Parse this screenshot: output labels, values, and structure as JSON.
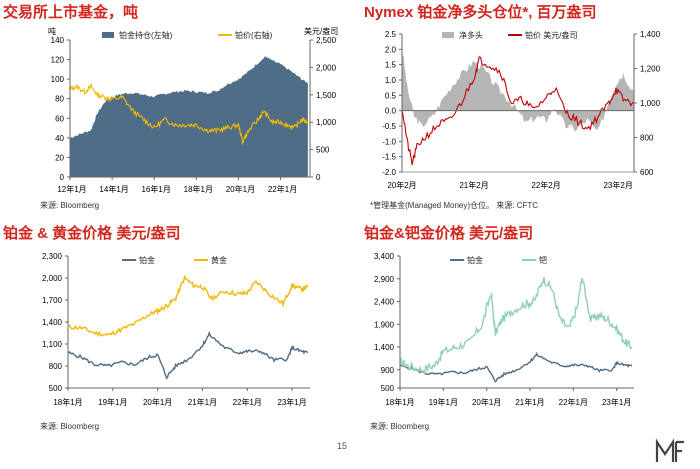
{
  "page": {
    "number": "15",
    "logo_text": "MF"
  },
  "charts": [
    {
      "title": "交易所上市基金，吨",
      "source": "来源: Bloomberg",
      "type": "area+line",
      "left_unit": "吨",
      "right_unit": "美元/盎司",
      "legend": [
        {
          "name": "铂金持仓(左轴)",
          "color": "#4f6d86",
          "kind": "area"
        },
        {
          "name": "铂价(右轴)",
          "color": "#f2b705",
          "kind": "line"
        }
      ],
      "x_labels": [
        "12年1月",
        "14年1月",
        "16年1月",
        "18年1月",
        "20年1月",
        "22年1月"
      ],
      "x_range": [
        2012,
        2023.4
      ],
      "x_tick_years": [
        2012,
        2014,
        2016,
        2018,
        2020,
        2022
      ],
      "y_left_range": [
        0,
        140
      ],
      "y_left_ticks": [
        0,
        20,
        40,
        60,
        80,
        100,
        120,
        140
      ],
      "y_right_range": [
        0,
        2500
      ],
      "y_right_ticks": [
        0,
        500,
        1000,
        1500,
        2000,
        2500
      ],
      "y_right_tick_labels": [
        "0",
        "500",
        "1,000",
        "1,500",
        "2,000",
        "2,500"
      ],
      "series_area": {
        "name": "铂金持仓",
        "x": [
          2012,
          2012.5,
          2013,
          2013.3,
          2013.7,
          2014,
          2014.5,
          2015,
          2015.5,
          2016,
          2016.5,
          2017,
          2017.5,
          2018,
          2018.5,
          2019,
          2019.5,
          2020,
          2020.5,
          2021,
          2021.3,
          2021.6,
          2022,
          2022.5,
          2023,
          2023.3
        ],
        "y": [
          40,
          44,
          48,
          65,
          78,
          82,
          85,
          86,
          84,
          82,
          85,
          87,
          88,
          87,
          86,
          88,
          95,
          100,
          108,
          118,
          123,
          119,
          115,
          108,
          100,
          96
        ]
      },
      "series_line": {
        "name": "铂价",
        "x": [
          2012,
          2012.3,
          2012.7,
          2013,
          2013.3,
          2013.7,
          2014,
          2014.5,
          2015,
          2015.5,
          2016,
          2016.5,
          2017,
          2017.5,
          2018,
          2018.5,
          2019,
          2019.5,
          2020,
          2020.2,
          2020.5,
          2021,
          2021.2,
          2021.6,
          2022,
          2022.3,
          2022.7,
          2023,
          2023.3
        ],
        "y": [
          1600,
          1650,
          1550,
          1650,
          1500,
          1450,
          1420,
          1450,
          1200,
          1050,
          900,
          1050,
          950,
          950,
          950,
          850,
          850,
          900,
          950,
          650,
          850,
          1080,
          1200,
          1000,
          1000,
          950,
          900,
          1050,
          1000
        ]
      }
    },
    {
      "title": "Nymex 铂金净多头仓位*, 百万盎司",
      "source": "*管理基金(Managed Money)仓位。  来源: CFTC",
      "type": "area+line",
      "legend": [
        {
          "name": "净多头",
          "color": "#b5b5b5",
          "kind": "area"
        },
        {
          "name": "铂价 美元/盎司",
          "color": "#c00000",
          "kind": "line"
        }
      ],
      "x_labels": [
        "20年2月",
        "21年2月",
        "22年2月",
        "23年2月"
      ],
      "x_range": [
        2020.08,
        2023.3
      ],
      "x_tick_years": [
        2020.08,
        2021.08,
        2022.08,
        2023.08
      ],
      "y_left_range": [
        -2.0,
        2.5
      ],
      "y_left_ticks": [
        -2.0,
        -1.5,
        -1.0,
        -0.5,
        0.0,
        0.5,
        1.0,
        1.5,
        2.0,
        2.5
      ],
      "y_left_tick_labels": [
        "-2.0",
        "-1.5",
        "-1.0",
        "-0.5",
        "0.0",
        "0.5",
        "1.0",
        "1.5",
        "2.0",
        "2.5"
      ],
      "y_right_range": [
        600,
        1400
      ],
      "y_right_ticks": [
        600,
        800,
        1000,
        1200,
        1400
      ],
      "y_right_tick_labels": [
        "600",
        "800",
        "1,000",
        "1,200",
        "1,400"
      ],
      "series_area": {
        "name": "净多头",
        "x": [
          2020.08,
          2020.15,
          2020.25,
          2020.35,
          2020.5,
          2020.65,
          2020.8,
          2020.95,
          2021.08,
          2021.2,
          2021.35,
          2021.5,
          2021.65,
          2021.8,
          2021.95,
          2022.08,
          2022.2,
          2022.35,
          2022.5,
          2022.65,
          2022.8,
          2022.95,
          2023.05,
          2023.15,
          2023.3
        ],
        "y": [
          2.1,
          0.8,
          -0.2,
          -0.5,
          -0.2,
          0.4,
          0.9,
          1.3,
          1.6,
          1.4,
          0.9,
          0.5,
          0.1,
          -0.4,
          -0.2,
          -0.3,
          0.1,
          -0.5,
          -0.6,
          -0.3,
          -0.7,
          0.3,
          0.9,
          1.2,
          0.6
        ]
      },
      "series_line": {
        "name": "铂价",
        "x": [
          2020.08,
          2020.15,
          2020.22,
          2020.3,
          2020.45,
          2020.6,
          2020.75,
          2020.9,
          2021.08,
          2021.15,
          2021.3,
          2021.45,
          2021.6,
          2021.75,
          2021.9,
          2022.08,
          2022.2,
          2022.35,
          2022.5,
          2022.65,
          2022.8,
          2022.95,
          2023.05,
          2023.15,
          2023.3
        ],
        "y": [
          980,
          780,
          650,
          760,
          820,
          880,
          900,
          1000,
          1150,
          1250,
          1220,
          1180,
          1000,
          1020,
          960,
          1030,
          1090,
          950,
          900,
          850,
          920,
          1000,
          1080,
          1020,
          1000
        ]
      }
    },
    {
      "title": "铂金 & 黄金价格 美元/盎司",
      "source": "来源: Bloomberg",
      "type": "line",
      "legend": [
        {
          "name": "铂金",
          "color": "#4f6d86",
          "kind": "line"
        },
        {
          "name": "黄金",
          "color": "#f2b705",
          "kind": "line"
        }
      ],
      "x_labels": [
        "18年1月",
        "19年1月",
        "20年1月",
        "21年1月",
        "22年1月",
        "23年1月"
      ],
      "x_range": [
        2018,
        2023.4
      ],
      "x_tick_years": [
        2018,
        2019,
        2020,
        2021,
        2022,
        2023
      ],
      "y_range": [
        500,
        2300
      ],
      "y_ticks": [
        500,
        800,
        1100,
        1400,
        1700,
        2000,
        2300
      ],
      "y_tick_labels": [
        "500",
        "800",
        "1,100",
        "1,400",
        "1,700",
        "2,000",
        "2,300"
      ],
      "series": [
        {
          "name": "铂金",
          "x": [
            2018,
            2018.3,
            2018.6,
            2018.9,
            2019.2,
            2019.5,
            2019.8,
            2020,
            2020.2,
            2020.4,
            2020.7,
            2021,
            2021.15,
            2021.5,
            2021.8,
            2022,
            2022.3,
            2022.6,
            2022.9,
            2023,
            2023.2,
            2023.35
          ],
          "y": [
            980,
            920,
            820,
            800,
            850,
            820,
            920,
            950,
            650,
            800,
            900,
            1080,
            1230,
            1050,
            980,
            1000,
            1000,
            880,
            900,
            1050,
            1000,
            980
          ]
        },
        {
          "name": "黄金",
          "x": [
            2018,
            2018.3,
            2018.6,
            2018.9,
            2019.2,
            2019.5,
            2019.8,
            2020,
            2020.2,
            2020.4,
            2020.6,
            2020.8,
            2021,
            2021.2,
            2021.5,
            2021.8,
            2022,
            2022.2,
            2022.5,
            2022.8,
            2023,
            2023.2,
            2023.35
          ],
          "y": [
            1330,
            1320,
            1250,
            1220,
            1300,
            1380,
            1500,
            1550,
            1620,
            1720,
            2000,
            1900,
            1880,
            1720,
            1820,
            1780,
            1800,
            1950,
            1780,
            1650,
            1900,
            1850,
            1880
          ]
        }
      ]
    },
    {
      "title": "铂金&钯金价格 美元/盎司",
      "source": "来源: Bloomberg",
      "type": "line",
      "legend": [
        {
          "name": "铂金",
          "color": "#4f6d86",
          "kind": "line"
        },
        {
          "name": "钯",
          "color": "#8fd0b5",
          "kind": "line"
        }
      ],
      "x_labels": [
        "18年1月",
        "19年1月",
        "20年1月",
        "21年1月",
        "22年1月",
        "23年1月"
      ],
      "x_range": [
        2018,
        2023.4
      ],
      "x_tick_years": [
        2018,
        2019,
        2020,
        2021,
        2022,
        2023
      ],
      "y_range": [
        500,
        3400
      ],
      "y_ticks": [
        500,
        900,
        1400,
        1900,
        2400,
        2900,
        3400
      ],
      "y_tick_labels": [
        "500",
        "900",
        "1,400",
        "1,900",
        "2,400",
        "2,900",
        "3,400"
      ],
      "series": [
        {
          "name": "铂金",
          "x": [
            2018,
            2018.3,
            2018.6,
            2018.9,
            2019.2,
            2019.5,
            2019.8,
            2020,
            2020.2,
            2020.4,
            2020.7,
            2021,
            2021.15,
            2021.5,
            2021.8,
            2022,
            2022.3,
            2022.6,
            2022.9,
            2023,
            2023.2,
            2023.35
          ],
          "y": [
            990,
            920,
            820,
            800,
            850,
            830,
            920,
            960,
            660,
            800,
            900,
            1080,
            1230,
            1060,
            980,
            1000,
            1000,
            880,
            900,
            1050,
            1000,
            980
          ]
        },
        {
          "name": "钯",
          "x": [
            2018,
            2018.2,
            2018.5,
            2018.8,
            2019,
            2019.3,
            2019.6,
            2019.9,
            2020.1,
            2020.2,
            2020.35,
            2020.6,
            2020.9,
            2021.1,
            2021.3,
            2021.5,
            2021.7,
            2021.9,
            2022.1,
            2022.2,
            2022.4,
            2022.6,
            2022.8,
            2023,
            2023.2,
            2023.35
          ],
          "y": [
            1100,
            980,
            900,
            1000,
            1300,
            1400,
            1500,
            1900,
            2600,
            1700,
            2000,
            2200,
            2350,
            2400,
            2900,
            2700,
            2000,
            1800,
            2300,
            2950,
            2000,
            2100,
            2000,
            1800,
            1500,
            1400
          ]
        }
      ]
    }
  ]
}
